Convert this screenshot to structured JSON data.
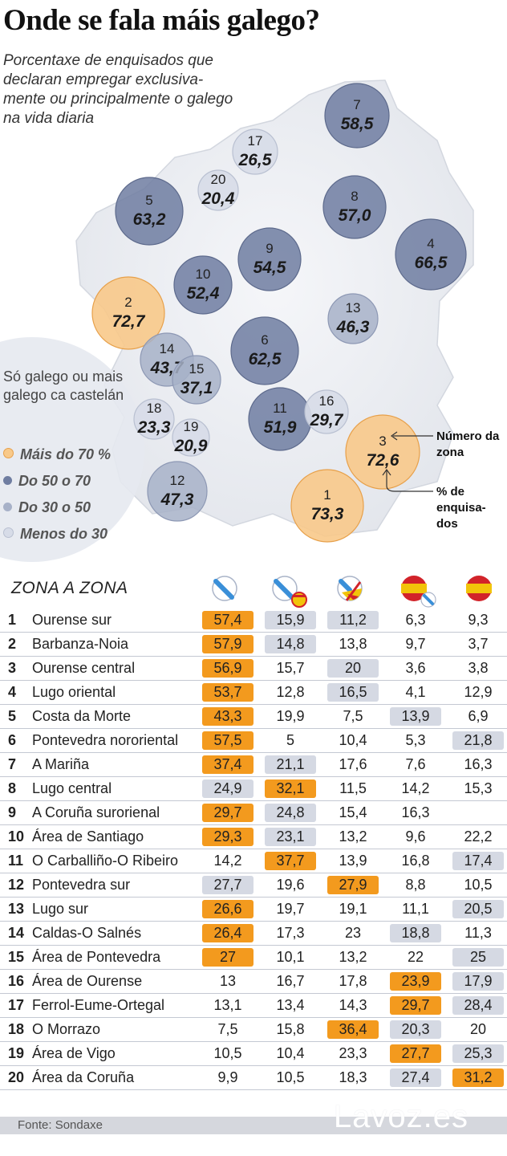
{
  "title": "Onde se fala máis galego?",
  "subtitle": "Porcentaxe de enquisados que declaran empregar exclusiva-mente ou principalmente o galego na vida diaria",
  "legend": {
    "title": "Só galego ou mais galego ca castelán",
    "items": [
      {
        "label": "Máis do 70 %",
        "color": "#f8c98a"
      },
      {
        "label": "Do 50 o 70",
        "color": "#6f7da1"
      },
      {
        "label": "Do 30 o 50",
        "color": "#a7b1c8"
      },
      {
        "label": "Menos do 30",
        "color": "#d7dce8"
      }
    ]
  },
  "callouts": {
    "zone_number": "Número da zona",
    "percent": "% de enquisa-dos"
  },
  "colors": {
    "orange_fill": "#f8c98a",
    "orange_stroke": "#e7a04a",
    "dark_blue": "#6f7da1",
    "mid_blue": "#a7b1c8",
    "light_blue": "#d7dce8",
    "highlight_orange": "#f39a1e",
    "highlight_blue": "#d5d9e3"
  },
  "chart_data": [
    {
      "type": "scatter",
      "description_type": "bubble map",
      "points": [
        {
          "zone": "1",
          "value": 73.3,
          "label": "73,3",
          "category": "Máis do 70 %"
        },
        {
          "zone": "2",
          "value": 72.7,
          "label": "72,7",
          "category": "Máis do 70 %"
        },
        {
          "zone": "3",
          "value": 72.6,
          "label": "72,6",
          "category": "Máis do 70 %"
        },
        {
          "zone": "4",
          "value": 66.5,
          "label": "66,5",
          "category": "Do 50 o 70"
        },
        {
          "zone": "5",
          "value": 63.2,
          "label": "63,2",
          "category": "Do 50 o 70"
        },
        {
          "zone": "6",
          "value": 62.5,
          "label": "62,5",
          "category": "Do 50 o 70"
        },
        {
          "zone": "7",
          "value": 58.5,
          "label": "58,5",
          "category": "Do 50 o 70"
        },
        {
          "zone": "8",
          "value": 57.0,
          "label": "57,0",
          "category": "Do 50 o 70"
        },
        {
          "zone": "9",
          "value": 54.5,
          "label": "54,5",
          "category": "Do 50 o 70"
        },
        {
          "zone": "10",
          "value": 52.4,
          "label": "52,4",
          "category": "Do 50 o 70"
        },
        {
          "zone": "11",
          "value": 51.9,
          "label": "51,9",
          "category": "Do 50 o 70"
        },
        {
          "zone": "12",
          "value": 47.3,
          "label": "47,3",
          "category": "Do 30 o 50"
        },
        {
          "zone": "13",
          "value": 46.3,
          "label": "46,3",
          "category": "Do 30 o 50"
        },
        {
          "zone": "14",
          "value": 43.7,
          "label": "43,7",
          "category": "Do 30 o 50"
        },
        {
          "zone": "15",
          "value": 37.1,
          "label": "37,1",
          "category": "Do 30 o 50"
        },
        {
          "zone": "16",
          "value": 29.7,
          "label": "29,7",
          "category": "Menos do 30"
        },
        {
          "zone": "17",
          "value": 26.5,
          "label": "26,5",
          "category": "Menos do 30"
        },
        {
          "zone": "18",
          "value": 23.3,
          "label": "23,3",
          "category": "Menos do 30"
        },
        {
          "zone": "19",
          "value": 20.9,
          "label": "20,9",
          "category": "Menos do 30"
        },
        {
          "zone": "20",
          "value": 20.4,
          "label": "20,4",
          "category": "Menos do 30"
        }
      ]
    },
    {
      "type": "table",
      "title": "ZONA A ZONA",
      "columns": [
        "Só galego",
        "Máis galego ca castelán",
        "Galego e castelán por igual",
        "Máis castelán ca galego",
        "Só castelán"
      ],
      "column_icons": [
        "galician-flag-icon",
        "galician-flag-with-spanish-icon",
        "half-galician-half-spanish-flag-icon",
        "spanish-flag-with-galician-icon",
        "spanish-flag-icon"
      ],
      "rows": [
        {
          "num": "1",
          "name": "Ourense sur",
          "values": [
            "57,4",
            "15,9",
            "11,2",
            "6,3",
            "9,3"
          ],
          "hl": [
            "o",
            "b",
            "b",
            "",
            ""
          ]
        },
        {
          "num": "2",
          "name": "Barbanza-Noia",
          "values": [
            "57,9",
            "14,8",
            "13,8",
            "9,7",
            "3,7"
          ],
          "hl": [
            "o",
            "b",
            "",
            "",
            ""
          ]
        },
        {
          "num": "3",
          "name": "Ourense central",
          "values": [
            "56,9",
            "15,7",
            "20",
            "3,6",
            "3,8"
          ],
          "hl": [
            "o",
            "",
            "b",
            "",
            ""
          ]
        },
        {
          "num": "4",
          "name": "Lugo oriental",
          "values": [
            "53,7",
            "12,8",
            "16,5",
            "4,1",
            "12,9"
          ],
          "hl": [
            "o",
            "",
            "b",
            "",
            ""
          ]
        },
        {
          "num": "5",
          "name": "Costa da Morte",
          "values": [
            "43,3",
            "19,9",
            "7,5",
            "13,9",
            "6,9"
          ],
          "hl": [
            "o",
            "",
            "",
            "b",
            ""
          ]
        },
        {
          "num": "6",
          "name": "Pontevedra nororiental",
          "values": [
            "57,5",
            "5",
            "10,4",
            "5,3",
            "21,8"
          ],
          "hl": [
            "o",
            "",
            "",
            "",
            "b"
          ]
        },
        {
          "num": "7",
          "name": "A Mariña",
          "values": [
            "37,4",
            "21,1",
            "17,6",
            "7,6",
            "16,3"
          ],
          "hl": [
            "o",
            "b",
            "",
            "",
            ""
          ]
        },
        {
          "num": "8",
          "name": "Lugo central",
          "values": [
            "24,9",
            "32,1",
            "11,5",
            "14,2",
            "15,3"
          ],
          "hl": [
            "b",
            "o",
            "",
            "",
            ""
          ]
        },
        {
          "num": "9",
          "name": "A Coruña surorienal",
          "values": [
            "29,7",
            "24,8",
            "15,4",
            "16,3",
            ""
          ],
          "hl": [
            "o",
            "b",
            "",
            "",
            ""
          ]
        },
        {
          "num": "10",
          "name": "Área de Santiago",
          "values": [
            "29,3",
            "23,1",
            "13,2",
            "9,6",
            "22,2"
          ],
          "hl": [
            "o",
            "b",
            "",
            "",
            ""
          ]
        },
        {
          "num": "11",
          "name": "O Carballiño-O Ribeiro",
          "values": [
            "14,2",
            "37,7",
            "13,9",
            "16,8",
            "17,4"
          ],
          "hl": [
            "",
            "o",
            "",
            "",
            "b"
          ]
        },
        {
          "num": "12",
          "name": "Pontevedra sur",
          "values": [
            "27,7",
            "19,6",
            "27,9",
            "8,8",
            "10,5"
          ],
          "hl": [
            "b",
            "",
            "o",
            "",
            ""
          ]
        },
        {
          "num": "13",
          "name": "Lugo sur",
          "values": [
            "26,6",
            "19,7",
            "19,1",
            "11,1",
            "20,5"
          ],
          "hl": [
            "o",
            "",
            "",
            "",
            "b"
          ]
        },
        {
          "num": "14",
          "name": "Caldas-O Salnés",
          "values": [
            "26,4",
            "17,3",
            "23",
            "18,8",
            "11,3"
          ],
          "hl": [
            "o",
            "",
            "",
            "b",
            ""
          ]
        },
        {
          "num": "15",
          "name": "Área de Pontevedra",
          "values": [
            "27",
            "10,1",
            "13,2",
            "22",
            "25"
          ],
          "hl": [
            "o",
            "",
            "",
            "",
            "b"
          ]
        },
        {
          "num": "16",
          "name": "Área de Ourense",
          "values": [
            "13",
            "16,7",
            "17,8",
            "23,9",
            "17,9"
          ],
          "hl": [
            "",
            "",
            "",
            "o",
            "b"
          ]
        },
        {
          "num": "17",
          "name": "Ferrol-Eume-Ortegal",
          "values": [
            "13,1",
            "13,4",
            "14,3",
            "29,7",
            "28,4"
          ],
          "hl": [
            "",
            "",
            "",
            "o",
            "b"
          ]
        },
        {
          "num": "18",
          "name": "O Morrazo",
          "values": [
            "7,5",
            "15,8",
            "36,4",
            "20,3",
            "20"
          ],
          "hl": [
            "",
            "",
            "o",
            "b",
            ""
          ]
        },
        {
          "num": "19",
          "name": "Área de Vigo",
          "values": [
            "10,5",
            "10,4",
            "23,3",
            "27,7",
            "25,3"
          ],
          "hl": [
            "",
            "",
            "",
            "o",
            "b"
          ]
        },
        {
          "num": "20",
          "name": "Área da Coruña",
          "values": [
            "9,9",
            "10,5",
            "18,3",
            "27,4",
            "31,2"
          ],
          "hl": [
            "",
            "",
            "",
            "b",
            "o"
          ]
        }
      ]
    }
  ],
  "footer": {
    "source": "Fonte: Sondaxe",
    "brand": "Lavoz.es"
  }
}
